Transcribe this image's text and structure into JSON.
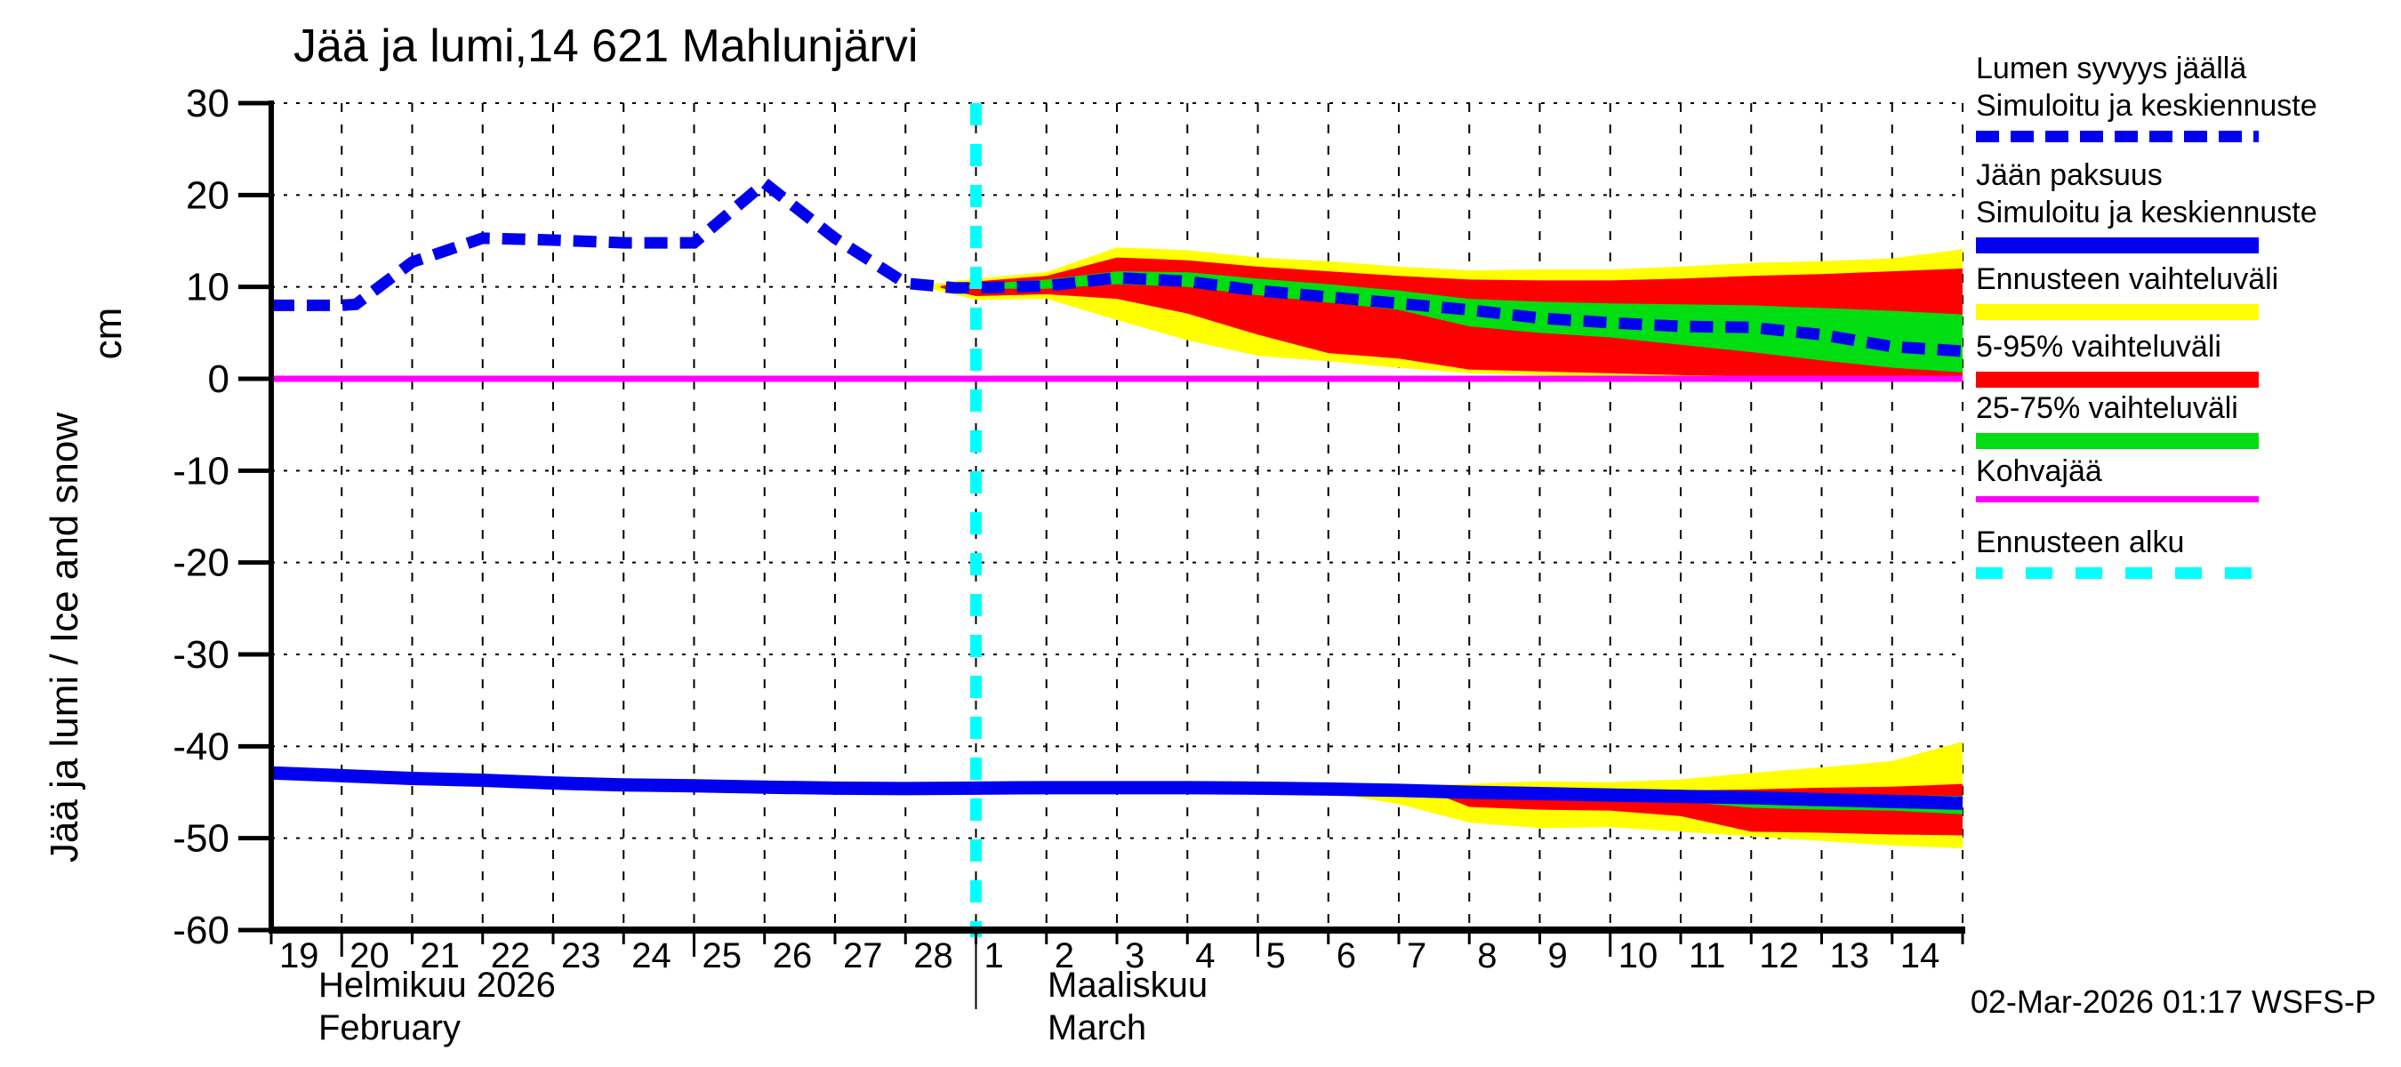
{
  "chart_data": {
    "type": "line",
    "title": "Jää ja lumi,14 621 Mahlunjärvi",
    "ylabel": "Jää ja lumi / Ice and snow",
    "ylabel_unit": "cm",
    "ylim": [
      -60,
      30
    ],
    "grid": true,
    "y_ticks": [
      30,
      20,
      10,
      0,
      -10,
      -20,
      -30,
      -40,
      -50,
      -60
    ],
    "x_axis": {
      "day_labels": [
        "19",
        "20",
        "21",
        "22",
        "23",
        "24",
        "25",
        "26",
        "27",
        "28",
        "1",
        "2",
        "3",
        "4",
        "5",
        "6",
        "7",
        "8",
        "9",
        "10",
        "11",
        "12",
        "13",
        "14"
      ],
      "long_tick_days": [
        20,
        25,
        5,
        10
      ],
      "month_1_fi": "Helmikuu 2026",
      "month_1_en": "February",
      "month_2_fi": "Maaliskuu",
      "month_2_en": "March"
    },
    "forecast_start_day": 10,
    "series": {
      "snow_median": {
        "name": "Lumen syvyys jäällä, simuloitu ja keskiennuste",
        "x": [
          0,
          1,
          1.2,
          2,
          3,
          4,
          5,
          6,
          7,
          8,
          9,
          9.7,
          10,
          11,
          12,
          13,
          14,
          15,
          16,
          17,
          18,
          19,
          20,
          21,
          22,
          23,
          24
        ],
        "y": [
          8.0,
          8.0,
          8.1,
          12.7,
          15.3,
          15.1,
          14.8,
          14.8,
          21.3,
          15.3,
          10.4,
          9.9,
          9.9,
          10.1,
          11.0,
          10.6,
          9.6,
          8.9,
          8.2,
          7.5,
          6.6,
          6.1,
          5.7,
          5.6,
          4.8,
          3.5,
          3.0
        ]
      },
      "snow_band_yellow": {
        "name": "Ennusteen vaihteluväli (lumi)",
        "x": [
          9.3,
          10,
          11,
          12,
          13,
          14,
          15,
          16,
          17,
          18,
          19,
          20,
          21,
          22,
          23,
          24
        ],
        "top": [
          10.2,
          10.9,
          11.6,
          14.3,
          14.0,
          13.2,
          12.8,
          12.2,
          11.8,
          11.9,
          11.9,
          12.2,
          12.6,
          12.8,
          13.1,
          14.1
        ],
        "bottom": [
          9.9,
          8.6,
          8.7,
          6.4,
          4.2,
          2.5,
          1.9,
          1.2,
          0.6,
          0.4,
          0.1,
          0.0,
          0.0,
          0.0,
          0.0,
          0.0
        ]
      },
      "snow_band_red": {
        "name": "5-95% vaihteluväli (lumi)",
        "x": [
          9.5,
          10,
          11,
          12,
          13,
          14,
          15,
          16,
          17,
          18,
          19,
          20,
          21,
          22,
          23,
          24
        ],
        "top": [
          10.1,
          10.6,
          11.2,
          13.2,
          12.9,
          12.2,
          11.7,
          11.2,
          10.8,
          10.7,
          10.7,
          10.9,
          11.2,
          11.4,
          11.7,
          12.0
        ],
        "bottom": [
          9.9,
          9.0,
          9.2,
          8.7,
          7.1,
          4.8,
          2.8,
          2.2,
          1.0,
          0.8,
          0.6,
          0.4,
          0.3,
          0.1,
          0.0,
          0.0
        ]
      },
      "snow_band_green": {
        "name": "25-75% vaihteluväli (lumi)",
        "x": [
          9.6,
          10,
          11,
          12,
          13,
          14,
          15,
          16,
          17,
          18,
          19,
          20,
          21,
          22,
          23,
          24
        ],
        "top": [
          10.0,
          10.3,
          10.8,
          11.7,
          11.6,
          10.9,
          10.3,
          9.6,
          8.7,
          8.4,
          8.2,
          8.1,
          8.0,
          7.7,
          7.4,
          7.0
        ],
        "bottom": [
          9.8,
          9.8,
          9.8,
          10.3,
          10.0,
          9.1,
          8.3,
          7.5,
          5.7,
          5.0,
          4.5,
          3.7,
          2.9,
          2.0,
          1.2,
          0.7
        ]
      },
      "ice_median": {
        "name": "Jään paksuus, simuloitu ja keskiennuste",
        "x": [
          0,
          1,
          2,
          3,
          4,
          5,
          6,
          7,
          8,
          9,
          10,
          11,
          12,
          13,
          14,
          15,
          16,
          17,
          18,
          19,
          20,
          21,
          22,
          23,
          24
        ],
        "y": [
          -42.9,
          -43.2,
          -43.5,
          -43.7,
          -44.0,
          -44.2,
          -44.3,
          -44.45,
          -44.55,
          -44.6,
          -44.55,
          -44.5,
          -44.5,
          -44.5,
          -44.55,
          -44.65,
          -44.8,
          -45.0,
          -45.15,
          -45.3,
          -45.45,
          -45.6,
          -45.8,
          -46.0,
          -46.2
        ]
      },
      "ice_band_yellow": {
        "name": "Ennusteen vaihteluväli (jää)",
        "x": [
          15,
          16,
          17,
          18,
          19,
          20,
          21,
          22,
          23,
          24
        ],
        "top": [
          -44.4,
          -44.3,
          -44.1,
          -43.8,
          -43.9,
          -43.6,
          -42.9,
          -42.3,
          -41.6,
          -39.5
        ],
        "bottom": [
          -45.0,
          -46.3,
          -48.3,
          -48.9,
          -48.8,
          -49.3,
          -49.8,
          -50.3,
          -50.8,
          -51.1
        ]
      },
      "ice_band_red": {
        "name": "5-95% vaihteluväli (jää)",
        "x": [
          16.5,
          17,
          18,
          19,
          20,
          21,
          22,
          23,
          24
        ],
        "top": [
          -44.6,
          -44.5,
          -44.6,
          -44.7,
          -44.8,
          -44.7,
          -44.5,
          -44.4,
          -44.1
        ],
        "bottom": [
          -45.1,
          -46.6,
          -46.9,
          -47.0,
          -47.6,
          -49.3,
          -49.4,
          -49.6,
          -49.7
        ]
      },
      "ice_band_green": {
        "name": "25-75% vaihteluväli (jää)",
        "x": [
          20,
          21,
          22,
          23,
          24
        ],
        "top": [
          -45.0,
          -45.1,
          -45.2,
          -45.3,
          -45.4
        ],
        "bottom": [
          -46.0,
          -46.7,
          -46.9,
          -47.0,
          -47.4
        ]
      },
      "kohvajaa": {
        "name": "Kohvajää",
        "x": [
          0,
          24
        ],
        "y": [
          0,
          0
        ]
      }
    }
  },
  "legend": {
    "items": [
      {
        "lines": [
          "Lumen syvyys jäällä",
          "Simuloitu ja keskiennuste"
        ],
        "swatch": "blue-dashed"
      },
      {
        "lines": [
          "Jään paksuus",
          "Simuloitu ja keskiennuste"
        ],
        "swatch": "blue-solid"
      },
      {
        "lines": [
          "Ennusteen vaihteluväli"
        ],
        "swatch": "yellow-bar"
      },
      {
        "lines": [
          "5-95% vaihteluväli"
        ],
        "swatch": "red-bar"
      },
      {
        "lines": [
          "25-75% vaihteluväli"
        ],
        "swatch": "green-bar"
      },
      {
        "lines": [
          "Kohvajää"
        ],
        "swatch": "magenta-line"
      },
      {
        "lines": [
          "Ennusteen alku"
        ],
        "swatch": "cyan-dashed"
      }
    ]
  },
  "footer": {
    "timestamp": "02-Mar-2026 01:17 WSFS-P"
  },
  "colors": {
    "blue": "#0000ee",
    "yellow": "#ffff00",
    "red": "#ff0000",
    "green": "#00dd11",
    "magenta": "#ff00ff",
    "cyan": "#00ffff",
    "axis": "#000000"
  }
}
